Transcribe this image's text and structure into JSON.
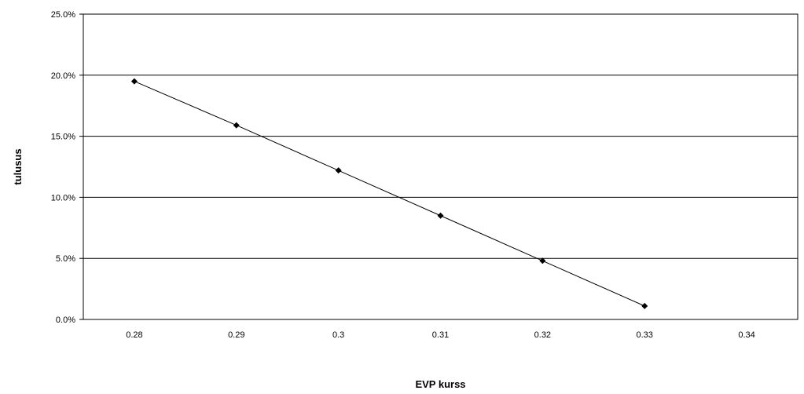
{
  "chart_data": {
    "type": "line",
    "title": "",
    "xlabel": "EVP kurss",
    "ylabel": "tulusus",
    "x_ticks": [
      "0.28",
      "0.29",
      "0.3",
      "0.31",
      "0.32",
      "0.33",
      "0.34"
    ],
    "y_ticks": [
      "0.0%",
      "5.0%",
      "10.0%",
      "15.0%",
      "20.0%",
      "25.0%"
    ],
    "ylim": [
      0,
      25
    ],
    "grid": true,
    "legend": "none",
    "series": [
      {
        "x": [
          0.28,
          0.29,
          0.3,
          0.31,
          0.32,
          0.33
        ],
        "y": [
          19.5,
          15.9,
          12.2,
          8.5,
          4.8,
          1.1
        ],
        "color": "#000000",
        "marker": "diamond"
      }
    ]
  }
}
